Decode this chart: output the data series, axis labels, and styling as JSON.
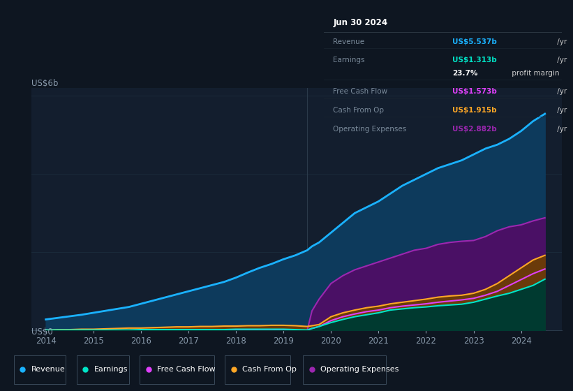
{
  "bg_color": "#0e1621",
  "chart_bg": "#131e2e",
  "grid_color": "#1a2a3a",
  "ylabel": "US$6b",
  "y0_label": "US$0",
  "years": [
    2014.0,
    2014.25,
    2014.5,
    2014.75,
    2015.0,
    2015.25,
    2015.5,
    2015.75,
    2016.0,
    2016.25,
    2016.5,
    2016.75,
    2017.0,
    2017.25,
    2017.5,
    2017.75,
    2018.0,
    2018.25,
    2018.5,
    2018.75,
    2019.0,
    2019.25,
    2019.5,
    2019.6,
    2019.75,
    2020.0,
    2020.25,
    2020.5,
    2020.75,
    2021.0,
    2021.25,
    2021.5,
    2021.75,
    2022.0,
    2022.25,
    2022.5,
    2022.75,
    2023.0,
    2023.25,
    2023.5,
    2023.75,
    2024.0,
    2024.25,
    2024.5
  ],
  "revenue": [
    0.28,
    0.32,
    0.36,
    0.4,
    0.45,
    0.5,
    0.55,
    0.6,
    0.68,
    0.76,
    0.84,
    0.92,
    1.0,
    1.08,
    1.16,
    1.24,
    1.35,
    1.48,
    1.6,
    1.7,
    1.82,
    1.92,
    2.05,
    2.15,
    2.25,
    2.5,
    2.75,
    3.0,
    3.15,
    3.3,
    3.5,
    3.7,
    3.85,
    4.0,
    4.15,
    4.25,
    4.35,
    4.5,
    4.65,
    4.75,
    4.9,
    5.1,
    5.35,
    5.54
  ],
  "earnings": [
    0.01,
    0.01,
    0.01,
    0.01,
    0.01,
    0.01,
    0.01,
    0.01,
    0.02,
    0.02,
    0.02,
    0.02,
    0.02,
    0.02,
    0.02,
    0.02,
    0.03,
    0.03,
    0.03,
    0.03,
    0.03,
    0.02,
    0.01,
    0.05,
    0.1,
    0.2,
    0.28,
    0.35,
    0.4,
    0.45,
    0.52,
    0.55,
    0.58,
    0.6,
    0.63,
    0.65,
    0.67,
    0.72,
    0.8,
    0.88,
    0.95,
    1.05,
    1.15,
    1.31
  ],
  "free_cash_flow": [
    0.0,
    0.0,
    0.0,
    0.0,
    0.0,
    0.0,
    0.0,
    0.0,
    0.0,
    0.0,
    0.0,
    0.0,
    0.0,
    0.0,
    0.0,
    0.0,
    0.01,
    0.01,
    0.0,
    0.0,
    0.01,
    0.0,
    0.0,
    0.05,
    0.1,
    0.25,
    0.35,
    0.42,
    0.48,
    0.52,
    0.58,
    0.62,
    0.65,
    0.68,
    0.72,
    0.75,
    0.78,
    0.82,
    0.9,
    1.0,
    1.15,
    1.3,
    1.45,
    1.57
  ],
  "cash_from_op": [
    0.01,
    0.02,
    0.02,
    0.03,
    0.03,
    0.04,
    0.05,
    0.06,
    0.06,
    0.07,
    0.08,
    0.09,
    0.09,
    0.1,
    0.1,
    0.11,
    0.11,
    0.12,
    0.12,
    0.13,
    0.13,
    0.12,
    0.1,
    0.12,
    0.15,
    0.35,
    0.45,
    0.52,
    0.58,
    0.62,
    0.68,
    0.72,
    0.76,
    0.8,
    0.85,
    0.88,
    0.9,
    0.95,
    1.05,
    1.2,
    1.4,
    1.6,
    1.8,
    1.92
  ],
  "operating_expenses": [
    0.0,
    0.0,
    0.0,
    0.0,
    0.0,
    0.0,
    0.0,
    0.0,
    0.0,
    0.0,
    0.0,
    0.0,
    0.0,
    0.0,
    0.0,
    0.0,
    0.0,
    0.0,
    0.0,
    0.0,
    0.0,
    0.0,
    0.0,
    0.5,
    0.8,
    1.2,
    1.4,
    1.55,
    1.65,
    1.75,
    1.85,
    1.95,
    2.05,
    2.1,
    2.2,
    2.25,
    2.28,
    2.3,
    2.4,
    2.55,
    2.65,
    2.7,
    2.8,
    2.88
  ],
  "revenue_color": "#1ab2ff",
  "revenue_fill": "#0d3a5c",
  "earnings_color": "#00e5c8",
  "earnings_fill": "#003a30",
  "fcf_color": "#e040fb",
  "fcf_fill": "#6a1a7a",
  "cashop_color": "#ffa726",
  "cashop_fill": "#6a3a0a",
  "opex_color": "#9c27b0",
  "opex_fill": "#4a1065",
  "xlim": [
    2013.7,
    2024.85
  ],
  "ylim": [
    0,
    6.2
  ],
  "xticks": [
    2014,
    2015,
    2016,
    2017,
    2018,
    2019,
    2020,
    2021,
    2022,
    2023,
    2024
  ],
  "legend_items": [
    {
      "label": "Revenue",
      "color": "#1ab2ff"
    },
    {
      "label": "Earnings",
      "color": "#00e5c8"
    },
    {
      "label": "Free Cash Flow",
      "color": "#e040fb"
    },
    {
      "label": "Cash From Op",
      "color": "#ffa726"
    },
    {
      "label": "Operating Expenses",
      "color": "#9c27b0"
    }
  ],
  "infobox": {
    "date": "Jun 30 2024",
    "rows": [
      {
        "label": "Revenue",
        "value": "US$5.537b",
        "suffix": " /yr",
        "value_color": "#1ab2ff"
      },
      {
        "label": "Earnings",
        "value": "US$1.313b",
        "suffix": " /yr",
        "value_color": "#00e5c8"
      },
      {
        "label": "",
        "value": "23.7%",
        "suffix": " profit margin",
        "value_color": "#ffffff"
      },
      {
        "label": "Free Cash Flow",
        "value": "US$1.573b",
        "suffix": " /yr",
        "value_color": "#e040fb"
      },
      {
        "label": "Cash From Op",
        "value": "US$1.915b",
        "suffix": " /yr",
        "value_color": "#ffa726"
      },
      {
        "label": "Operating Expenses",
        "value": "US$2.882b",
        "suffix": " /yr",
        "value_color": "#9c27b0"
      }
    ]
  }
}
